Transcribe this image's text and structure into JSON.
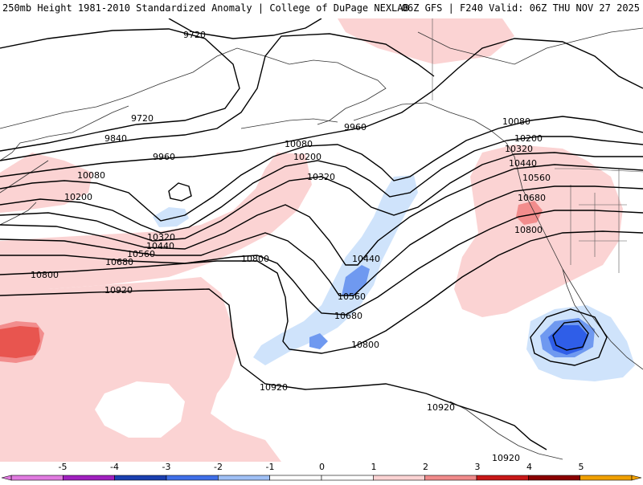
{
  "title": {
    "left": "250mb Height 1981-2010 Standardized Anomaly | College of DuPage NEXLAB",
    "right": "06Z GFS | F240 Valid: 06Z THU NOV 27 2025"
  },
  "colors": {
    "pos1": "#fbd3d3",
    "pos2": "#f28d8d",
    "pos3": "#e8554f",
    "neg1": "#cfe3fb",
    "neg2": "#6f99f0",
    "neg3": "#2f5ee8",
    "contour": "#000000",
    "coast": "#333333"
  },
  "contours": [
    {
      "name": "9720",
      "labels": [
        "9720",
        "9720"
      ]
    },
    {
      "name": "9840",
      "labels": [
        "9840"
      ]
    },
    {
      "name": "9960",
      "labels": [
        "9960",
        "9960"
      ]
    },
    {
      "name": "10080",
      "labels": [
        "10080",
        "10080",
        "10080"
      ]
    },
    {
      "name": "10200",
      "labels": [
        "10200",
        "10200",
        "10200"
      ]
    },
    {
      "name": "10320",
      "labels": [
        "10320",
        "10320",
        "10320"
      ]
    },
    {
      "name": "10440",
      "labels": [
        "10440",
        "10440",
        "10440"
      ]
    },
    {
      "name": "10560",
      "labels": [
        "10560",
        "10560",
        "10560"
      ]
    },
    {
      "name": "10680",
      "labels": [
        "10680",
        "10680",
        "10680"
      ]
    },
    {
      "name": "10800",
      "labels": [
        "10800",
        "10800",
        "10800",
        "10800"
      ]
    },
    {
      "name": "10920",
      "labels": [
        "10920",
        "10920",
        "10920",
        "10920"
      ]
    }
  ],
  "colorbar": {
    "ticks": [
      "-5",
      "-4",
      "-3",
      "-2",
      "-1",
      "0",
      "1",
      "2",
      "3",
      "4",
      "5"
    ],
    "segments": [
      "#e07ae0",
      "#a020c0",
      "#1a3fb0",
      "#3f6fe8",
      "#9fc0f5",
      "#ffffff",
      "#ffffff",
      "#fbd3d3",
      "#f08a8a",
      "#c81818",
      "#8b0000",
      "#f0a000"
    ]
  }
}
